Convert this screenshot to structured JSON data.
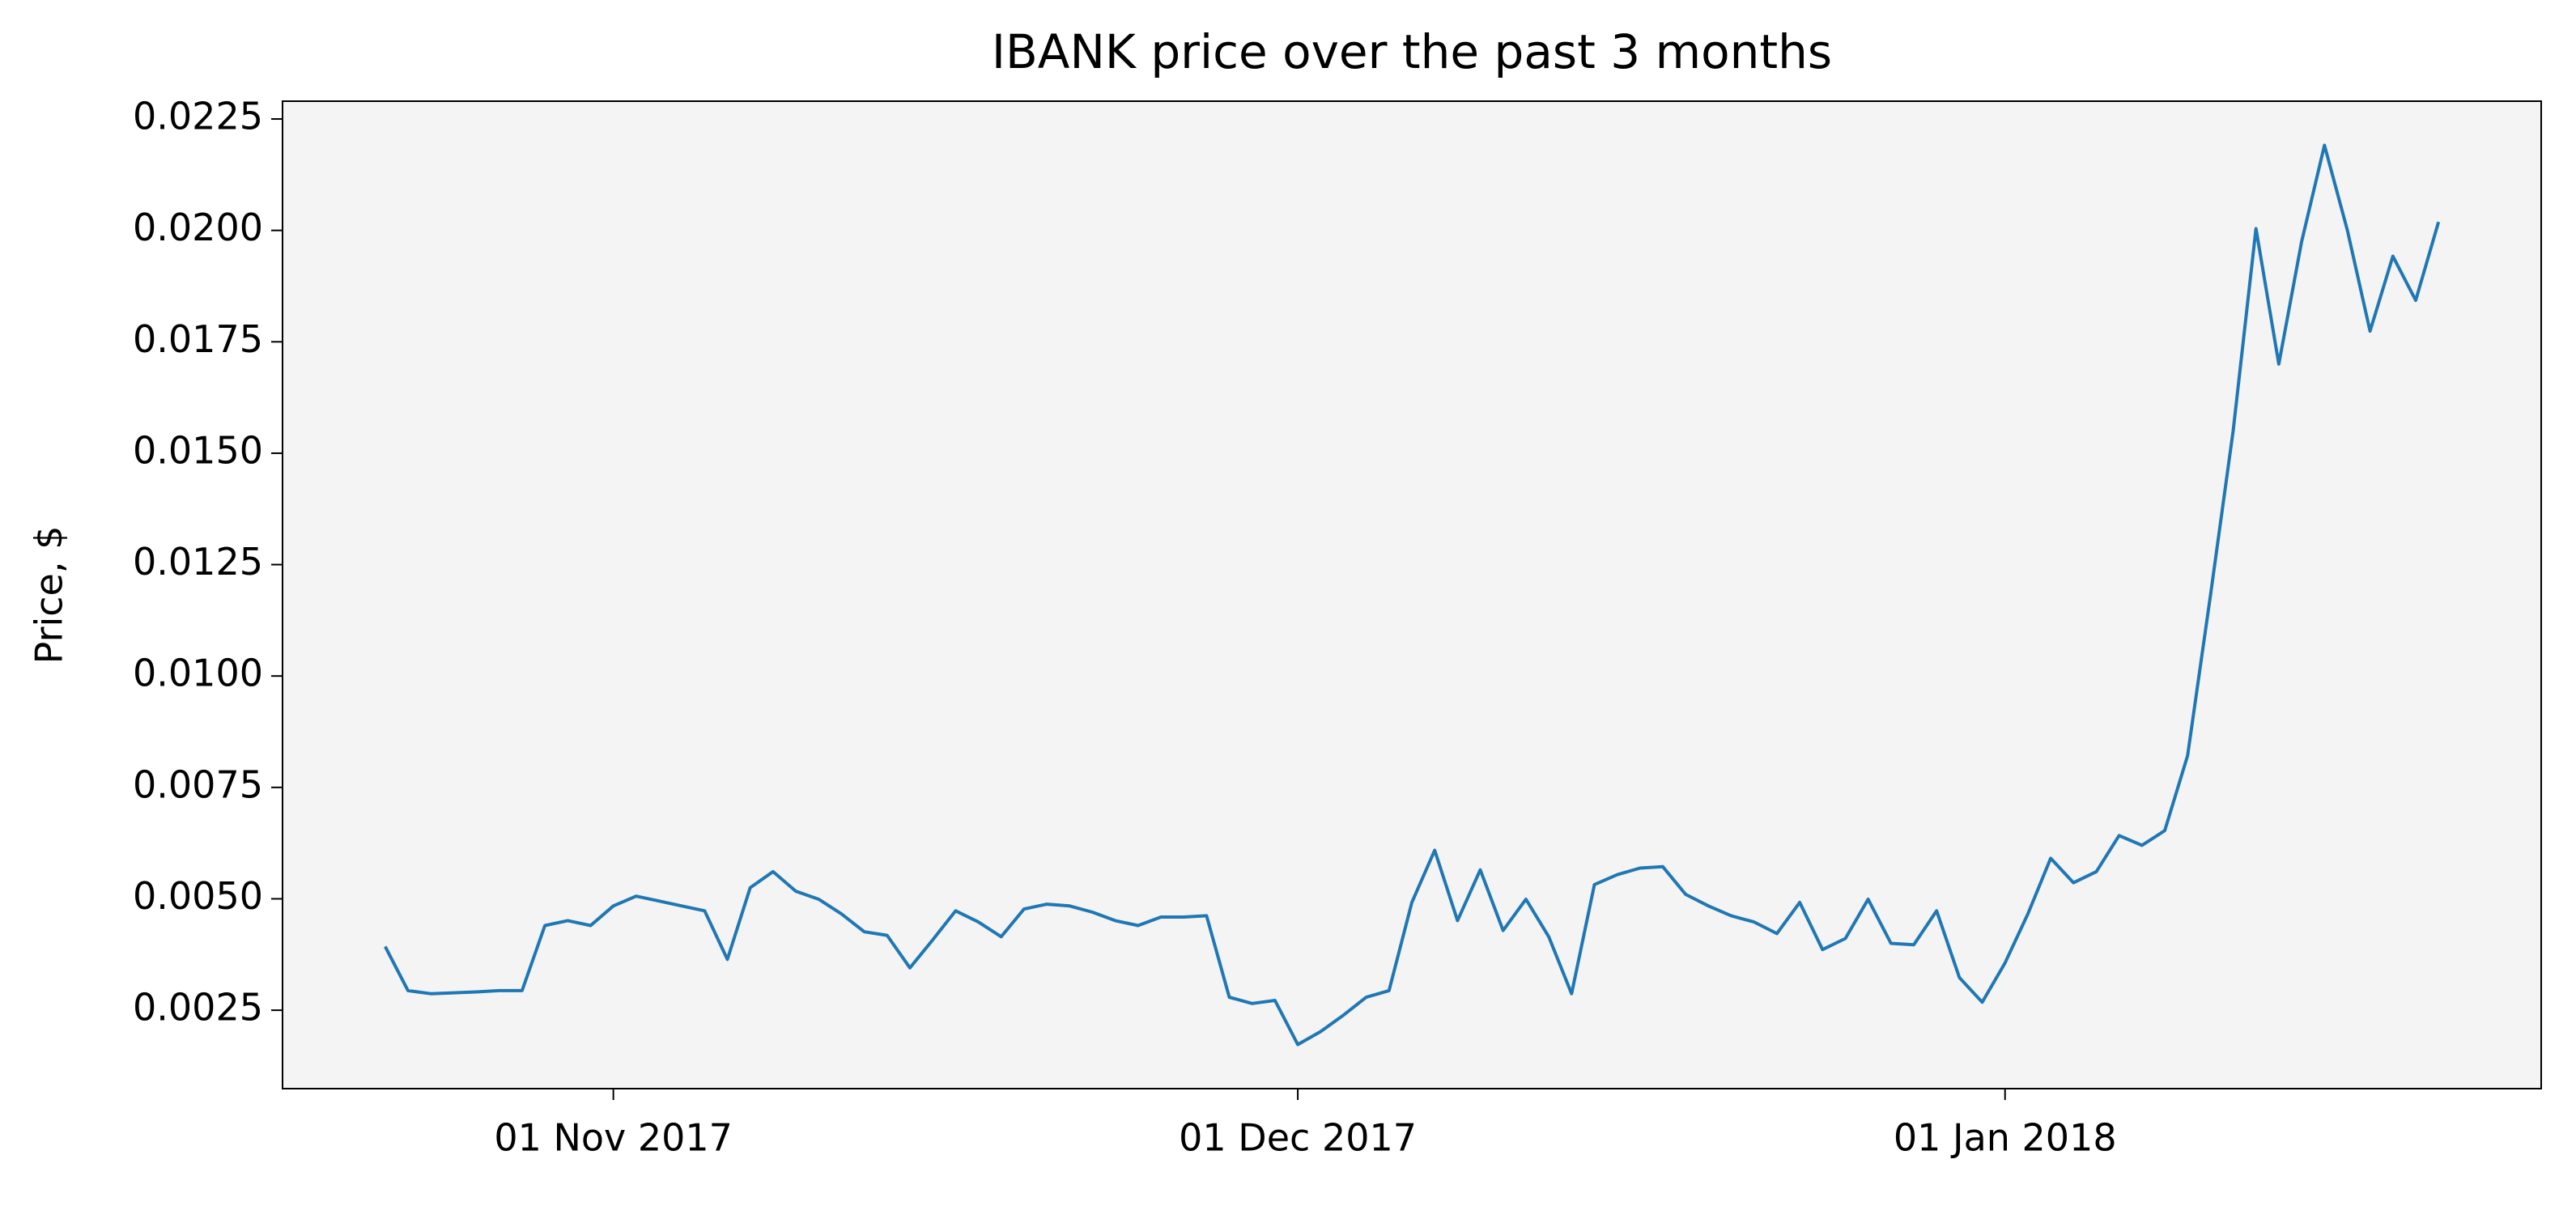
{
  "chart_data": {
    "type": "line",
    "title": "IBANK price over the past 3 months",
    "y_label": "Price, $",
    "x": [
      "2017-10-22",
      "2017-10-23",
      "2017-10-24",
      "2017-10-25",
      "2017-10-26",
      "2017-10-27",
      "2017-10-28",
      "2017-10-29",
      "2017-10-30",
      "2017-10-31",
      "2017-11-01",
      "2017-11-02",
      "2017-11-03",
      "2017-11-04",
      "2017-11-05",
      "2017-11-06",
      "2017-11-07",
      "2017-11-08",
      "2017-11-09",
      "2017-11-10",
      "2017-11-11",
      "2017-11-12",
      "2017-11-13",
      "2017-11-14",
      "2017-11-15",
      "2017-11-16",
      "2017-11-17",
      "2017-11-18",
      "2017-11-19",
      "2017-11-20",
      "2017-11-21",
      "2017-11-22",
      "2017-11-23",
      "2017-11-24",
      "2017-11-25",
      "2017-11-26",
      "2017-11-27",
      "2017-11-28",
      "2017-11-29",
      "2017-11-30",
      "2017-12-01",
      "2017-12-02",
      "2017-12-03",
      "2017-12-04",
      "2017-12-05",
      "2017-12-06",
      "2017-12-07",
      "2017-12-08",
      "2017-12-09",
      "2017-12-10",
      "2017-12-11",
      "2017-12-12",
      "2017-12-13",
      "2017-12-14",
      "2017-12-15",
      "2017-12-16",
      "2017-12-17",
      "2017-12-18",
      "2017-12-19",
      "2017-12-20",
      "2017-12-21",
      "2017-12-22",
      "2017-12-23",
      "2017-12-24",
      "2017-12-25",
      "2017-12-26",
      "2017-12-27",
      "2017-12-28",
      "2017-12-29",
      "2017-12-30",
      "2017-12-31",
      "2018-01-01",
      "2018-01-02",
      "2018-01-03",
      "2018-01-04",
      "2018-01-05",
      "2018-01-06",
      "2018-01-07",
      "2018-01-08",
      "2018-01-09",
      "2018-01-10",
      "2018-01-11",
      "2018-01-12",
      "2018-01-13",
      "2018-01-14",
      "2018-01-15",
      "2018-01-16",
      "2018-01-17",
      "2018-01-18",
      "2018-01-19",
      "2018-01-20"
    ],
    "series": [
      {
        "color": "#1f77b4",
        "values": [
          0.00393,
          0.00294,
          0.00287,
          0.00289,
          0.00291,
          0.00294,
          0.00294,
          0.0044,
          0.00451,
          0.0044,
          0.00484,
          0.00506,
          0.00495,
          0.00484,
          0.00473,
          0.00364,
          0.00525,
          0.00561,
          0.00517,
          0.00499,
          0.00466,
          0.00426,
          0.00418,
          0.00345,
          0.00408,
          0.00473,
          0.00448,
          0.00415,
          0.00477,
          0.00488,
          0.00484,
          0.0047,
          0.00451,
          0.0044,
          0.00459,
          0.00459,
          0.00462,
          0.00279,
          0.00265,
          0.00272,
          0.00173,
          0.00202,
          0.00239,
          0.00279,
          0.00294,
          0.00492,
          0.00609,
          0.00451,
          0.00565,
          0.00429,
          0.00499,
          0.00415,
          0.00287,
          0.00532,
          0.00554,
          0.00569,
          0.00572,
          0.0051,
          0.00484,
          0.00462,
          0.00448,
          0.00422,
          0.00492,
          0.00386,
          0.00411,
          0.00499,
          0.004,
          0.00397,
          0.00473,
          0.00323,
          0.00268,
          0.00356,
          0.00466,
          0.00591,
          0.00536,
          0.00561,
          0.00642,
          0.0062,
          0.00653,
          0.00821,
          0.0118,
          0.0155,
          0.02004,
          0.017,
          0.01975,
          0.02191,
          0.02001,
          0.01774,
          0.01942,
          0.01843,
          0.02019
        ]
      }
    ],
    "xlim": [
      "2017-10-17T12",
      "2018-01-24T12"
    ],
    "xticks": [
      {
        "value": "2017-11-01",
        "label": "01 Nov 2017"
      },
      {
        "value": "2017-12-01",
        "label": "01 Dec 2017"
      },
      {
        "value": "2018-01-01",
        "label": "01 Jan 2018"
      }
    ],
    "ylim": [
      0.00074,
      0.0229
    ],
    "yticks": [
      0.0025,
      {
        "value": 0.005,
        "label": "0.0050"
      },
      0.0075,
      {
        "value": 0.01,
        "label": "0.0100"
      },
      0.0125,
      {
        "value": 0.015,
        "label": "0.0150"
      },
      0.0175,
      {
        "value": 0.02,
        "label": "0.0200"
      },
      0.0225
    ],
    "background": "#f4f4f4"
  }
}
